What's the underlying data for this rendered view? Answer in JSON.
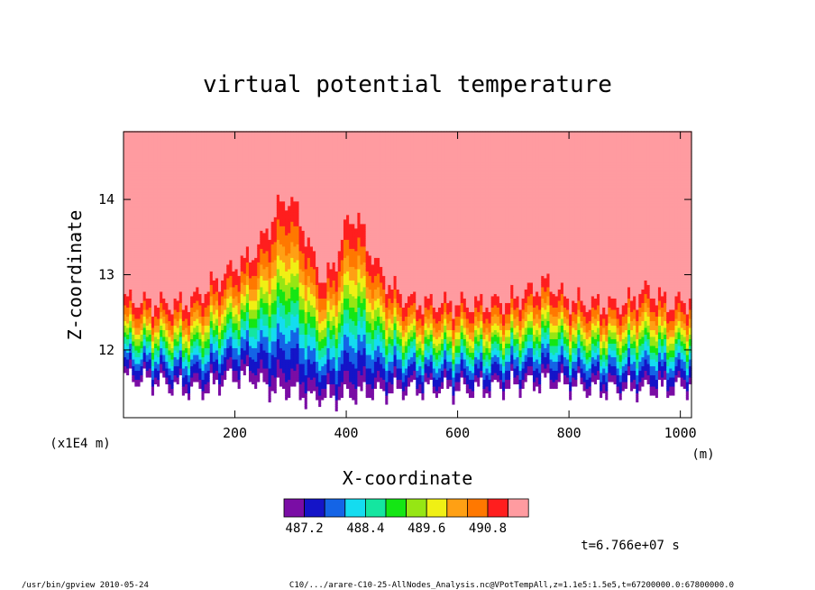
{
  "chart_data": {
    "type": "heatmap",
    "title": "virtual potential temperature",
    "xlabel": "X-coordinate",
    "xunit": "(m)",
    "ylabel": "Z-coordinate",
    "yunit": "(x1E4 m)",
    "xlim": [
      0,
      1020
    ],
    "ylim": [
      11.1,
      14.9
    ],
    "x_ticks": [
      200,
      400,
      600,
      800,
      1000
    ],
    "x_tick_labels": [
      "200",
      "400",
      "600",
      "800",
      "1000"
    ],
    "y_ticks": [
      12,
      13,
      14
    ],
    "y_tick_labels": [
      "12",
      "13",
      "14"
    ],
    "grid": false,
    "colorbar": {
      "levels": [
        486.8,
        487.0,
        487.2,
        487.4,
        487.6,
        487.8,
        488.0,
        488.2,
        488.4,
        488.6,
        488.8,
        489.0,
        489.2,
        489.4,
        489.6,
        489.8,
        490.0,
        490.2,
        490.4,
        490.6,
        490.8,
        491.0
      ],
      "colors": [
        "#7a0da5",
        "#1414c8",
        "#1464e6",
        "#14dcf0",
        "#14e6a0",
        "#14e614",
        "#96e614",
        "#f0f014",
        "#ffa014",
        "#ff7800",
        "#ff1e1e",
        "#ff9ba0"
      ],
      "tick_labels": [
        "487.2",
        "488.4",
        "489.6",
        "490.8"
      ]
    },
    "profile": {
      "x": [
        0,
        60,
        110,
        150,
        190,
        230,
        260,
        280,
        300,
        320,
        340,
        360,
        380,
        400,
        420,
        440,
        470,
        500,
        540,
        600,
        650,
        700,
        760,
        800,
        850,
        900,
        940,
        980,
        1020
      ],
      "z_center": [
        12.15,
        12.1,
        12.05,
        12.15,
        12.35,
        12.45,
        12.55,
        12.7,
        12.75,
        12.55,
        12.3,
        12.15,
        12.25,
        12.55,
        12.6,
        12.4,
        12.2,
        12.1,
        12.05,
        12.05,
        12.05,
        12.1,
        12.25,
        12.1,
        12.05,
        12.05,
        12.15,
        12.05,
        12.1
      ],
      "spread": [
        0.55,
        0.55,
        0.6,
        0.7,
        0.75,
        0.85,
        1.1,
        1.3,
        1.35,
        1.2,
        1.0,
        0.8,
        0.95,
        1.2,
        1.25,
        1.0,
        0.8,
        0.65,
        0.6,
        0.6,
        0.6,
        0.6,
        0.7,
        0.6,
        0.6,
        0.6,
        0.7,
        0.6,
        0.6
      ]
    },
    "annotation": "t=6.766e+07 s"
  },
  "footer": {
    "left": "/usr/bin/gpview   2010-05-24",
    "right": "C10/.../arare-C10-25-AllNodes_Analysis.nc@VPotTempAll,z=1.1e5:1.5e5,t=67200000.0:67800000.0"
  }
}
